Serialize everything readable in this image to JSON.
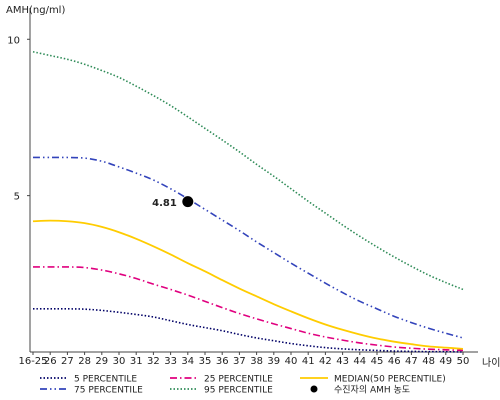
{
  "chart_data": {
    "type": "line",
    "ylabel": "AMH(ng/ml)",
    "xlabel": "나이",
    "categories": [
      "16-25",
      "26",
      "27",
      "28",
      "29",
      "30",
      "31",
      "32",
      "33",
      "34",
      "35",
      "36",
      "37",
      "38",
      "39",
      "40",
      "41",
      "42",
      "43",
      "44",
      "45",
      "46",
      "47",
      "48",
      "49",
      "50"
    ],
    "yticks": [
      5,
      10
    ],
    "ylim": [
      0,
      11
    ],
    "grid": false,
    "legend_position": "bottom",
    "series": [
      {
        "name": "5 PERCENTILE",
        "color": "#000066",
        "dash": "dotted",
        "values": [
          1.38,
          1.38,
          1.38,
          1.37,
          1.33,
          1.27,
          1.2,
          1.12,
          1.0,
          0.88,
          0.78,
          0.68,
          0.56,
          0.45,
          0.36,
          0.27,
          0.2,
          0.14,
          0.1,
          0.07,
          0.05,
          0.03,
          0.02,
          0.01,
          0.01,
          0.0
        ]
      },
      {
        "name": "25 PERCENTILE",
        "color": "#e0007f",
        "dash": "dashdot",
        "values": [
          2.72,
          2.72,
          2.72,
          2.7,
          2.62,
          2.5,
          2.35,
          2.17,
          2.0,
          1.82,
          1.62,
          1.42,
          1.23,
          1.06,
          0.9,
          0.75,
          0.6,
          0.48,
          0.38,
          0.29,
          0.22,
          0.16,
          0.12,
          0.09,
          0.07,
          0.05
        ]
      },
      {
        "name": "MEDIAN(50 PERCENTILE)",
        "color": "#ffcc00",
        "dash": "solid",
        "values": [
          4.18,
          4.2,
          4.18,
          4.12,
          4.0,
          3.83,
          3.62,
          3.38,
          3.12,
          2.84,
          2.58,
          2.3,
          2.03,
          1.78,
          1.53,
          1.3,
          1.08,
          0.88,
          0.71,
          0.56,
          0.43,
          0.33,
          0.25,
          0.18,
          0.14,
          0.1
        ]
      },
      {
        "name": "75 PERCENTILE",
        "color": "#3344bb",
        "dash": "dashdotdot",
        "values": [
          6.22,
          6.22,
          6.22,
          6.2,
          6.1,
          5.92,
          5.72,
          5.5,
          5.22,
          4.9,
          4.56,
          4.22,
          3.88,
          3.52,
          3.18,
          2.84,
          2.52,
          2.2,
          1.9,
          1.62,
          1.38,
          1.14,
          0.94,
          0.76,
          0.6,
          0.45
        ]
      },
      {
        "name": "95 PERCENTILE",
        "color": "#2e8b57",
        "dash": "dotted",
        "values": [
          9.6,
          9.48,
          9.36,
          9.2,
          9.0,
          8.78,
          8.5,
          8.2,
          7.88,
          7.52,
          7.15,
          6.78,
          6.4,
          6.0,
          5.62,
          5.22,
          4.82,
          4.44,
          4.06,
          3.7,
          3.36,
          3.04,
          2.74,
          2.46,
          2.22,
          2.0
        ]
      }
    ],
    "marker": {
      "label": "수진자의 AMH 농도",
      "category": "34",
      "value": 4.81,
      "value_label": "4.81",
      "color": "#000000"
    }
  }
}
